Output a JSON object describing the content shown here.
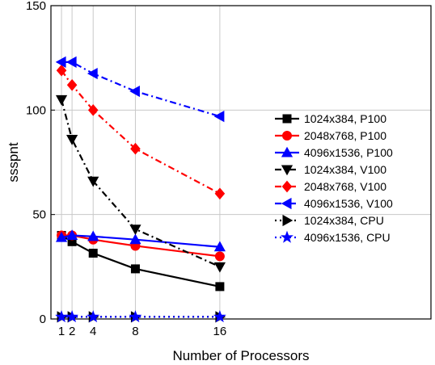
{
  "chart_data": {
    "type": "line",
    "title": "",
    "xlabel": "Number of Processors",
    "ylabel": "ssspnt",
    "x": [
      1,
      2,
      4,
      8,
      16
    ],
    "x_ticks": [
      "1",
      "2",
      "4",
      "8",
      "16"
    ],
    "y_ticks": [
      "0",
      "50",
      "100",
      "150"
    ],
    "xlim": [
      0,
      36
    ],
    "ylim": [
      0,
      150
    ],
    "grid": true,
    "legend_position": "right",
    "series": [
      {
        "name": "1024x384, P100",
        "values": [
          40,
          37,
          31.5,
          24,
          15.5
        ],
        "color": "#000000",
        "marker": "square",
        "dash": "solid"
      },
      {
        "name": "2048x768, P100",
        "values": [
          40,
          40,
          38,
          35,
          30
        ],
        "color": "#ff0000",
        "marker": "circle",
        "dash": "solid"
      },
      {
        "name": "4096x1536, P100",
        "values": [
          39,
          40,
          39.5,
          38,
          34.5
        ],
        "color": "#0000ff",
        "marker": "triangle-up",
        "dash": "solid"
      },
      {
        "name": "1024x384, V100",
        "values": [
          105,
          86,
          66,
          43,
          25
        ],
        "color": "#000000",
        "marker": "triangle-down",
        "dash": "dashdot"
      },
      {
        "name": "2048x768, V100",
        "values": [
          119,
          112,
          100,
          81.5,
          60
        ],
        "color": "#ff0000",
        "marker": "diamond",
        "dash": "dashdot"
      },
      {
        "name": "4096x1536, V100",
        "values": [
          123,
          123,
          117.5,
          109,
          97
        ],
        "color": "#0000ff",
        "marker": "triangle-left",
        "dash": "dashdot"
      },
      {
        "name": "1024x384, CPU",
        "values": [
          1,
          1,
          1,
          1,
          1
        ],
        "color": "#000000",
        "marker": "triangle-right",
        "dash": "dot"
      },
      {
        "name": "4096x1536, CPU",
        "values": [
          1,
          1,
          1,
          1,
          1
        ],
        "color": "#0000ff",
        "marker": "star",
        "dash": "dot"
      }
    ]
  }
}
